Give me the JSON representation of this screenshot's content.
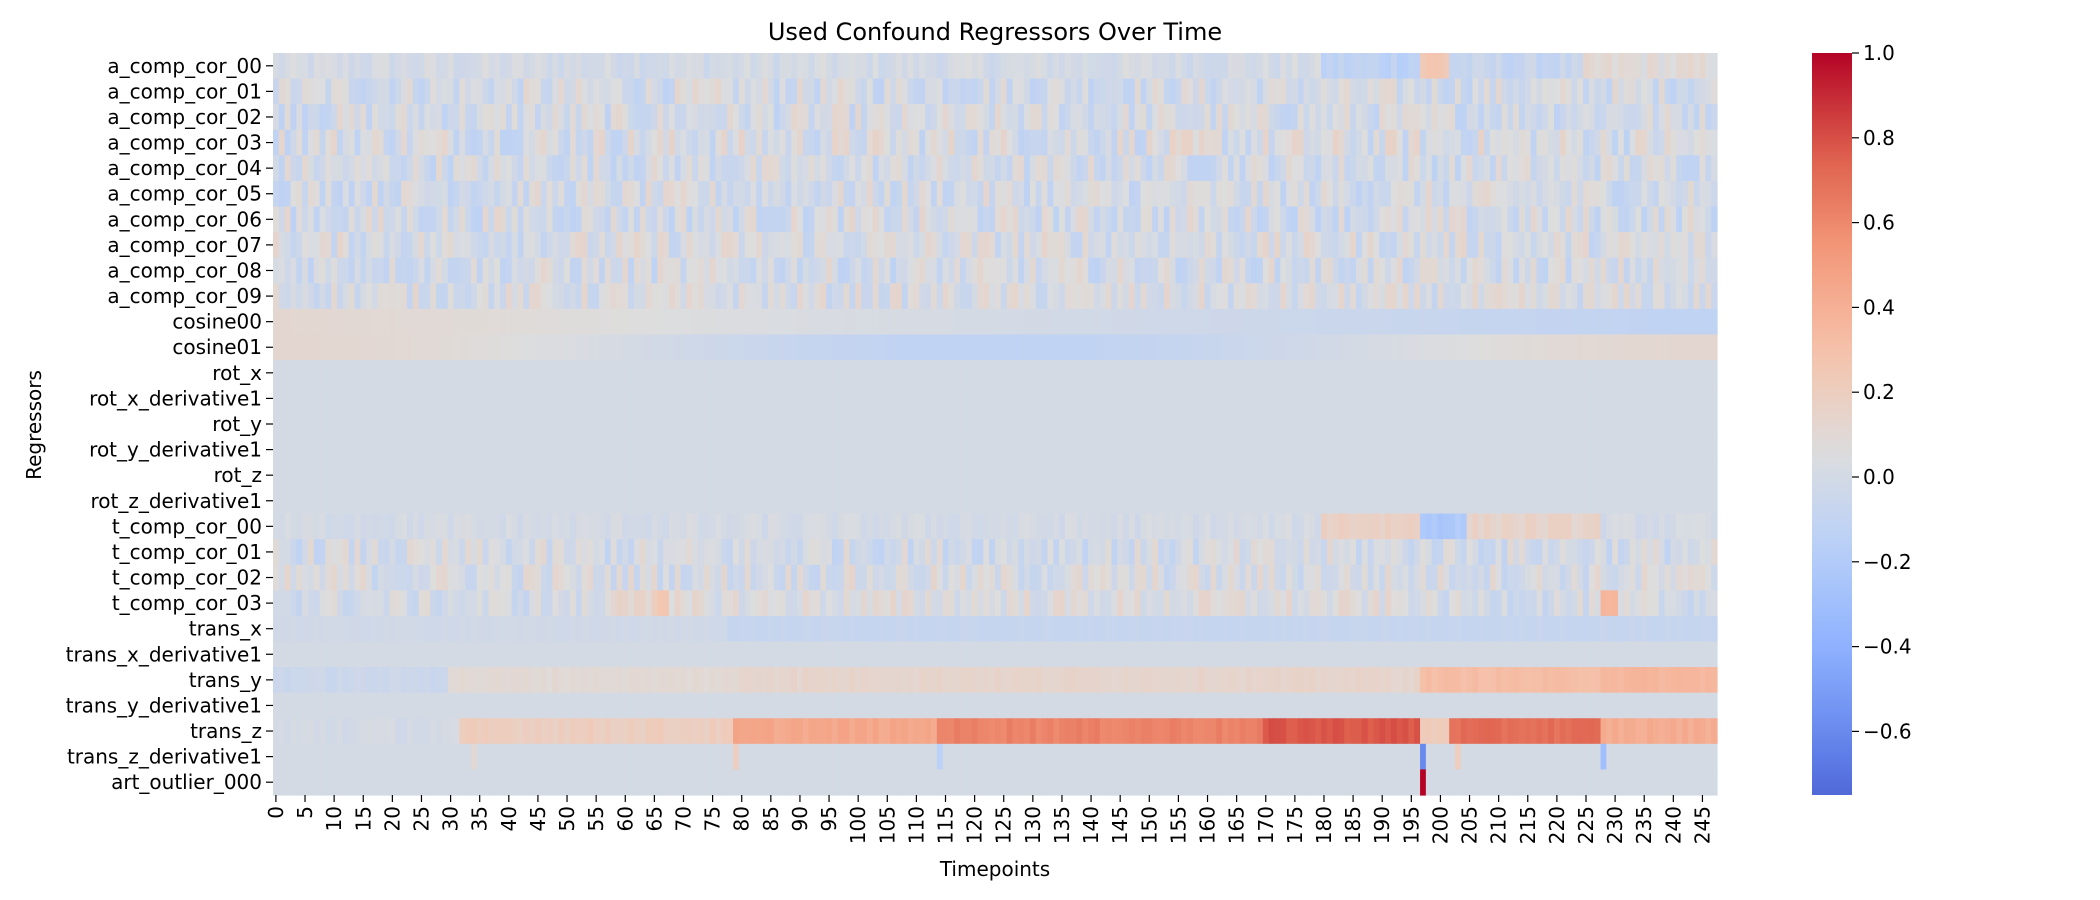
{
  "chart_data": {
    "type": "heatmap",
    "title": "Used Confound Regressors Over Time",
    "xlabel": "Timepoints",
    "ylabel": "Regressors",
    "n_timepoints": 248,
    "x_tick_step": 5,
    "x_tick_labels": [
      "0",
      "5",
      "10",
      "15",
      "20",
      "25",
      "30",
      "35",
      "40",
      "45",
      "50",
      "55",
      "60",
      "65",
      "70",
      "75",
      "80",
      "85",
      "90",
      "95",
      "100",
      "105",
      "110",
      "115",
      "120",
      "125",
      "130",
      "135",
      "140",
      "145",
      "150",
      "155",
      "160",
      "165",
      "170",
      "175",
      "180",
      "185",
      "190",
      "195",
      "200",
      "205",
      "210",
      "215",
      "220",
      "225",
      "230",
      "235",
      "240",
      "245"
    ],
    "regressors": [
      "a_comp_cor_00",
      "a_comp_cor_01",
      "a_comp_cor_02",
      "a_comp_cor_03",
      "a_comp_cor_04",
      "a_comp_cor_05",
      "a_comp_cor_06",
      "a_comp_cor_07",
      "a_comp_cor_08",
      "a_comp_cor_09",
      "cosine00",
      "cosine01",
      "rot_x",
      "rot_x_derivative1",
      "rot_y",
      "rot_y_derivative1",
      "rot_z",
      "rot_z_derivative1",
      "t_comp_cor_00",
      "t_comp_cor_01",
      "t_comp_cor_02",
      "t_comp_cor_03",
      "trans_x",
      "trans_x_derivative1",
      "trans_y",
      "trans_y_derivative1",
      "trans_z",
      "trans_z_derivative1",
      "art_outlier_000"
    ],
    "colormap": "coolwarm",
    "vmin": -0.75,
    "vmax": 1.0,
    "colorbar_ticks": [
      "1.0",
      "0.8",
      "0.6",
      "0.4",
      "0.2",
      "0.0",
      "−0.2",
      "−0.4",
      "−0.6"
    ],
    "colorbar_tick_values": [
      1.0,
      0.8,
      0.6,
      0.4,
      0.2,
      0.0,
      -0.2,
      -0.4,
      -0.6
    ],
    "rows": [
      {
        "name": "a_comp_cor_00",
        "kind": "noise",
        "amp": 0.06,
        "segments": [
          [
            0,
            180,
            0.0
          ],
          [
            180,
            197,
            -0.12
          ],
          [
            197,
            202,
            0.25
          ],
          [
            202,
            225,
            -0.08
          ],
          [
            225,
            248,
            0.08
          ]
        ]
      },
      {
        "name": "a_comp_cor_01",
        "kind": "noise",
        "amp": 0.13,
        "segments": [
          [
            0,
            248,
            0.0
          ]
        ]
      },
      {
        "name": "a_comp_cor_02",
        "kind": "noise",
        "amp": 0.13,
        "segments": [
          [
            0,
            248,
            0.0
          ]
        ]
      },
      {
        "name": "a_comp_cor_03",
        "kind": "noise",
        "amp": 0.15,
        "segments": [
          [
            0,
            248,
            0.02
          ]
        ]
      },
      {
        "name": "a_comp_cor_04",
        "kind": "noise",
        "amp": 0.13,
        "segments": [
          [
            0,
            248,
            0.0
          ]
        ]
      },
      {
        "name": "a_comp_cor_05",
        "kind": "noise",
        "amp": 0.13,
        "segments": [
          [
            0,
            248,
            0.0
          ]
        ]
      },
      {
        "name": "a_comp_cor_06",
        "kind": "noise",
        "amp": 0.14,
        "segments": [
          [
            0,
            248,
            0.0
          ]
        ]
      },
      {
        "name": "a_comp_cor_07",
        "kind": "noise",
        "amp": 0.13,
        "segments": [
          [
            0,
            248,
            0.02
          ]
        ]
      },
      {
        "name": "a_comp_cor_08",
        "kind": "noise",
        "amp": 0.13,
        "segments": [
          [
            0,
            248,
            0.0
          ]
        ]
      },
      {
        "name": "a_comp_cor_09",
        "kind": "noise",
        "amp": 0.12,
        "segments": [
          [
            0,
            248,
            0.02
          ]
        ]
      },
      {
        "name": "cosine00",
        "kind": "linear",
        "from": 0.12,
        "to": -0.12
      },
      {
        "name": "cosine01",
        "kind": "cosine",
        "from": 0.12,
        "to": -0.05
      },
      {
        "name": "rot_x",
        "kind": "constant",
        "value": 0.0
      },
      {
        "name": "rot_x_derivative1",
        "kind": "constant",
        "value": 0.0
      },
      {
        "name": "rot_y",
        "kind": "constant",
        "value": 0.0
      },
      {
        "name": "rot_y_derivative1",
        "kind": "constant",
        "value": 0.0
      },
      {
        "name": "rot_z",
        "kind": "constant",
        "value": 0.0
      },
      {
        "name": "rot_z_derivative1",
        "kind": "constant",
        "value": 0.0
      },
      {
        "name": "t_comp_cor_00",
        "kind": "noise",
        "amp": 0.04,
        "segments": [
          [
            0,
            180,
            0.0
          ],
          [
            180,
            197,
            0.18
          ],
          [
            197,
            205,
            -0.22
          ],
          [
            205,
            228,
            0.15
          ],
          [
            228,
            248,
            0.0
          ]
        ]
      },
      {
        "name": "t_comp_cor_01",
        "kind": "noise",
        "amp": 0.12,
        "segments": [
          [
            0,
            248,
            0.0
          ]
        ]
      },
      {
        "name": "t_comp_cor_02",
        "kind": "noise",
        "amp": 0.12,
        "segments": [
          [
            0,
            248,
            0.02
          ]
        ]
      },
      {
        "name": "t_comp_cor_03",
        "kind": "noise",
        "amp": 0.1,
        "segments": [
          [
            0,
            58,
            0.0
          ],
          [
            58,
            68,
            0.18
          ],
          [
            68,
            198,
            0.05
          ],
          [
            198,
            228,
            0.0
          ],
          [
            228,
            231,
            0.3
          ],
          [
            231,
            248,
            0.0
          ]
        ]
      },
      {
        "name": "trans_x",
        "kind": "noise",
        "amp": 0.01,
        "segments": [
          [
            0,
            78,
            -0.02
          ],
          [
            78,
            248,
            -0.08
          ]
        ]
      },
      {
        "name": "trans_x_derivative1",
        "kind": "constant",
        "value": 0.0
      },
      {
        "name": "trans_y",
        "kind": "noise",
        "amp": 0.02,
        "segments": [
          [
            0,
            30,
            -0.05
          ],
          [
            30,
            80,
            0.1
          ],
          [
            80,
            197,
            0.14
          ],
          [
            197,
            228,
            0.32
          ],
          [
            228,
            248,
            0.36
          ]
        ]
      },
      {
        "name": "trans_y_derivative1",
        "kind": "constant",
        "value": 0.0
      },
      {
        "name": "trans_z",
        "kind": "noise",
        "amp": 0.03,
        "segments": [
          [
            0,
            32,
            0.0
          ],
          [
            32,
            79,
            0.2
          ],
          [
            79,
            114,
            0.45
          ],
          [
            114,
            170,
            0.62
          ],
          [
            170,
            197,
            0.78
          ],
          [
            197,
            202,
            0.22
          ],
          [
            202,
            228,
            0.7
          ],
          [
            228,
            248,
            0.42
          ]
        ]
      },
      {
        "name": "trans_z_derivative1",
        "kind": "spikes",
        "base": 0.0,
        "spikes": [
          [
            79,
            0.2
          ],
          [
            114,
            -0.15
          ],
          [
            197,
            -0.6
          ],
          [
            203,
            0.2
          ],
          [
            228,
            -0.3
          ],
          [
            34,
            0.1
          ]
        ]
      },
      {
        "name": "art_outlier_000",
        "kind": "spikes",
        "base": 0.0,
        "spikes": [
          [
            197,
            1.0
          ]
        ]
      }
    ]
  }
}
